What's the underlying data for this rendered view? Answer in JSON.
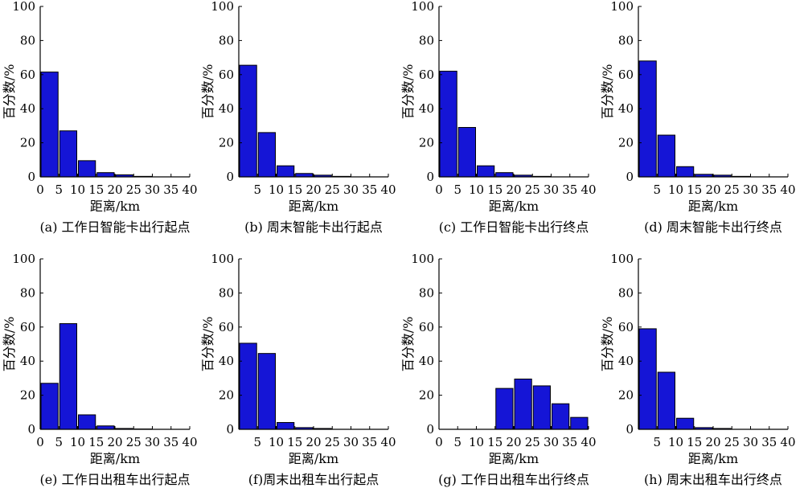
{
  "chart_data": [
    {
      "type": "bar",
      "title": "",
      "caption": "(a) 工作日智能卡出行起点",
      "xlabel": "距离/km",
      "ylabel": "百分数/%",
      "categories": [
        "0-5",
        "5-10",
        "10-15",
        "15-20",
        "20-25",
        "25-30",
        "30-35",
        "35-40"
      ],
      "values": [
        61.5,
        27.0,
        9.5,
        2.5,
        1.2,
        0.3,
        0.0,
        0.0
      ],
      "xlim": [
        0,
        40
      ],
      "ylim": [
        0,
        100
      ],
      "xticks": [
        0,
        5,
        10,
        15,
        20,
        25,
        30,
        35,
        40
      ],
      "xtick_labels": [
        "0",
        "5",
        "10",
        "15",
        "20",
        "25",
        "30",
        "35",
        "40"
      ],
      "yticks": [
        0,
        20,
        40,
        60,
        80,
        100
      ],
      "ytick_labels": [
        "0",
        "20",
        "40",
        "60",
        "80",
        "100"
      ],
      "bar_color": "#1515d6",
      "grid": false
    },
    {
      "type": "bar",
      "title": "",
      "caption": "(b) 周末智能卡出行起点",
      "xlabel": "距离/km",
      "ylabel": "百分数/%",
      "categories": [
        "0-5",
        "5-10",
        "10-15",
        "15-20",
        "20-25",
        "25-30",
        "30-35",
        "35-40"
      ],
      "values": [
        65.5,
        26.0,
        6.5,
        2.0,
        1.0,
        0.3,
        0.0,
        0.0
      ],
      "xlim": [
        0,
        40
      ],
      "ylim": [
        0,
        100
      ],
      "xticks": [
        0,
        5,
        10,
        15,
        20,
        25,
        30,
        35,
        40
      ],
      "xtick_labels": [
        "",
        "5",
        "10",
        "15",
        "20",
        "25",
        "30",
        "35",
        "40"
      ],
      "yticks": [
        0,
        20,
        40,
        60,
        80,
        100
      ],
      "ytick_labels": [
        "0",
        "20",
        "40",
        "60",
        "80",
        "100"
      ],
      "bar_color": "#1515d6",
      "grid": false
    },
    {
      "type": "bar",
      "title": "",
      "caption": "(c) 工作日智能卡出行终点",
      "xlabel": "距离/km",
      "ylabel": "百分数/%",
      "categories": [
        "0-5",
        "5-10",
        "10-15",
        "15-20",
        "20-25",
        "25-30",
        "30-35",
        "35-40"
      ],
      "values": [
        62.0,
        29.0,
        6.5,
        2.5,
        1.0,
        0.3,
        0.0,
        0.0
      ],
      "xlim": [
        0,
        40
      ],
      "ylim": [
        0,
        100
      ],
      "xticks": [
        0,
        5,
        10,
        15,
        20,
        25,
        30,
        35,
        40
      ],
      "xtick_labels": [
        "0",
        "5",
        "10",
        "15",
        "20",
        "25",
        "30",
        "35",
        "40"
      ],
      "yticks": [
        0,
        20,
        40,
        60,
        80,
        100
      ],
      "ytick_labels": [
        "0",
        "20",
        "40",
        "60",
        "80",
        "100"
      ],
      "bar_color": "#1515d6",
      "grid": false
    },
    {
      "type": "bar",
      "title": "",
      "caption": "(d) 周末智能卡出行终点",
      "xlabel": "距离/km",
      "ylabel": "百分数/%",
      "categories": [
        "0-5",
        "5-10",
        "10-15",
        "15-20",
        "20-25",
        "25-30",
        "30-35",
        "35-40"
      ],
      "values": [
        68.0,
        24.5,
        6.0,
        1.5,
        1.0,
        0.3,
        0.0,
        0.0
      ],
      "xlim": [
        0,
        40
      ],
      "ylim": [
        0,
        100
      ],
      "xticks": [
        0,
        5,
        10,
        15,
        20,
        25,
        30,
        35,
        40
      ],
      "xtick_labels": [
        "",
        "5",
        "10",
        "15",
        "20",
        "25",
        "30",
        "35",
        "40"
      ],
      "yticks": [
        0,
        20,
        40,
        60,
        80,
        100
      ],
      "ytick_labels": [
        "0",
        "20",
        "40",
        "60",
        "80",
        "100"
      ],
      "bar_color": "#1515d6",
      "grid": false
    },
    {
      "type": "bar",
      "title": "",
      "caption": "(e) 工作日出租车出行起点",
      "xlabel": "距离/km",
      "ylabel": "百分数/%",
      "categories": [
        "0-5",
        "5-10",
        "10-15",
        "15-20",
        "20-25",
        "25-30",
        "30-35",
        "35-40"
      ],
      "values": [
        27.0,
        62.0,
        8.5,
        2.0,
        0.5,
        0.2,
        0.0,
        0.0
      ],
      "xlim": [
        0,
        40
      ],
      "ylim": [
        0,
        100
      ],
      "xticks": [
        0,
        5,
        10,
        15,
        20,
        25,
        30,
        35,
        40
      ],
      "xtick_labels": [
        "0",
        "5",
        "10",
        "15",
        "20",
        "25",
        "30",
        "35",
        "40"
      ],
      "yticks": [
        0,
        20,
        40,
        60,
        80,
        100
      ],
      "ytick_labels": [
        "0",
        "20",
        "40",
        "60",
        "80",
        "100"
      ],
      "bar_color": "#1515d6",
      "grid": false
    },
    {
      "type": "bar",
      "title": "",
      "caption": "(f)周末出租车出行起点",
      "xlabel": "距离/km",
      "ylabel": "百分数/%",
      "categories": [
        "0-5",
        "5-10",
        "10-15",
        "15-20",
        "20-25",
        "25-30",
        "30-35",
        "35-40"
      ],
      "values": [
        50.5,
        44.5,
        4.0,
        1.0,
        0.5,
        0.0,
        0.0,
        0.0
      ],
      "xlim": [
        0,
        40
      ],
      "ylim": [
        0,
        100
      ],
      "xticks": [
        0,
        5,
        10,
        15,
        20,
        25,
        30,
        35,
        40
      ],
      "xtick_labels": [
        "",
        "5",
        "10",
        "15",
        "20",
        "25",
        "30",
        "35",
        "40"
      ],
      "yticks": [
        0,
        20,
        40,
        60,
        80,
        100
      ],
      "ytick_labels": [
        "0",
        "20",
        "40",
        "60",
        "80",
        "100"
      ],
      "bar_color": "#1515d6",
      "grid": false
    },
    {
      "type": "bar",
      "title": "",
      "caption": "(g) 工作日出租车出行终点",
      "xlabel": "距离/km",
      "ylabel": "百分数/%",
      "categories": [
        "0-5",
        "5-10",
        "10-15",
        "15-20",
        "20-25",
        "25-30",
        "30-35",
        "35-40"
      ],
      "values": [
        0.0,
        0.0,
        0.0,
        24.0,
        29.5,
        25.5,
        15.0,
        7.0
      ],
      "xlim": [
        0,
        40
      ],
      "ylim": [
        0,
        100
      ],
      "xticks": [
        0,
        5,
        10,
        15,
        20,
        25,
        30,
        35,
        40
      ],
      "xtick_labels": [
        "0",
        "5",
        "10",
        "15",
        "20",
        "25",
        "30",
        "35",
        "40"
      ],
      "yticks": [
        0,
        20,
        40,
        60,
        80,
        100
      ],
      "ytick_labels": [
        "0",
        "20",
        "40",
        "60",
        "80",
        "100"
      ],
      "bar_color": "#1515d6",
      "grid": false
    },
    {
      "type": "bar",
      "title": "",
      "caption": "(h) 周末出租车出行终点",
      "xlabel": "距离/km",
      "ylabel": "百分数/%",
      "categories": [
        "0-5",
        "5-10",
        "10-15",
        "15-20",
        "20-25",
        "25-30",
        "30-35",
        "35-40"
      ],
      "values": [
        59.0,
        33.5,
        6.5,
        1.0,
        0.5,
        0.0,
        0.0,
        0.0
      ],
      "xlim": [
        0,
        40
      ],
      "ylim": [
        0,
        100
      ],
      "xticks": [
        0,
        5,
        10,
        15,
        20,
        25,
        30,
        35,
        40
      ],
      "xtick_labels": [
        "",
        "5",
        "10",
        "15",
        "20",
        "25",
        "30",
        "35",
        "40"
      ],
      "yticks": [
        0,
        20,
        40,
        60,
        80,
        100
      ],
      "ytick_labels": [
        "0",
        "20",
        "40",
        "60",
        "80",
        "100"
      ],
      "bar_color": "#1515d6",
      "grid": false
    }
  ]
}
